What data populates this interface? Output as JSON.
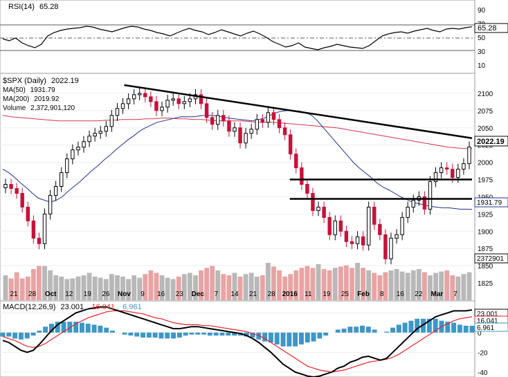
{
  "chart_data": [
    {
      "type": "line",
      "panel": "rsi",
      "title": "RSI(14)",
      "value_label": "65.28",
      "yticks": [
        10,
        30,
        50,
        70,
        90
      ],
      "ylim": [
        0,
        100
      ],
      "overbought": 70,
      "oversold": 30,
      "series": [
        {
          "name": "RSI(14)",
          "color": "#000000",
          "values": [
            48,
            45,
            49,
            42,
            38,
            35,
            40,
            52,
            57,
            60,
            62,
            63,
            64,
            66,
            65,
            62,
            60,
            58,
            61,
            64,
            66,
            65,
            62,
            60,
            57,
            55,
            52,
            56,
            60,
            63,
            60,
            58,
            54,
            57,
            61,
            58,
            55,
            52,
            56,
            59,
            55,
            50,
            44,
            40,
            36,
            38,
            42,
            36,
            34,
            32,
            35,
            37,
            40,
            38,
            36,
            35,
            34,
            38,
            45,
            52,
            55,
            57,
            58,
            56,
            59,
            61,
            63,
            60,
            58,
            62,
            63,
            62,
            64,
            65.28
          ]
        }
      ]
    },
    {
      "type": "candlestick",
      "panel": "price",
      "title": "$SPX (Daily)",
      "title_value": "2022.19",
      "legend": [
        {
          "name": "MA(50)",
          "value": "1931.79",
          "color": "#1f2f8f"
        },
        {
          "name": "MA(200)",
          "value": "2019.92",
          "color": "#d3324a"
        },
        {
          "name": "Volume",
          "value": "2,372,901,120",
          "color": "#888888"
        }
      ],
      "ylim": [
        1800,
        2125
      ],
      "yticks": [
        1825,
        1850,
        1875,
        1900,
        1925,
        1950,
        1975,
        2000,
        2025,
        2050,
        2075,
        2100
      ],
      "last_price_label": "2022.19",
      "ma50_label": "1931.79",
      "volume_label": "2372901",
      "x_labels": [
        "21",
        "28",
        "Oct",
        "12",
        "19",
        "26",
        "Nov",
        "9",
        "16",
        "23",
        "Dec",
        "7",
        "14",
        "21",
        "28",
        "2016",
        "11",
        "19",
        "25",
        "Feb",
        "8",
        "16",
        "22",
        "Mar",
        "7"
      ],
      "closes": [
        1968,
        1962,
        1955,
        1935,
        1915,
        1890,
        1882,
        1925,
        1952,
        1965,
        1985,
        2005,
        2018,
        2022,
        2030,
        2038,
        2042,
        2045,
        2052,
        2068,
        2078,
        2085,
        2092,
        2098,
        2100,
        2095,
        2088,
        2075,
        2080,
        2090,
        2092,
        2085,
        2088,
        2092,
        2098,
        2085,
        2065,
        2055,
        2068,
        2060,
        2045,
        2050,
        2028,
        2042,
        2048,
        2062,
        2058,
        2072,
        2062,
        2050,
        2040,
        2012,
        1992,
        1968,
        1955,
        1930,
        1935,
        1920,
        1895,
        1915,
        1900,
        1885,
        1882,
        1892,
        1880,
        1935,
        1910,
        1895,
        1860,
        1890,
        1895,
        1920,
        1935,
        1945,
        1950,
        1932,
        1972,
        1985,
        1992,
        1990,
        1978,
        1990,
        1998,
        2022.19
      ],
      "ma50": [
        1990,
        1985,
        1978,
        1970,
        1963,
        1955,
        1948,
        1945,
        1942,
        1945,
        1950,
        1958,
        1965,
        1972,
        1980,
        1988,
        1995,
        2003,
        2010,
        2018,
        2025,
        2032,
        2038,
        2045,
        2050,
        2054,
        2058,
        2060,
        2062,
        2064,
        2066,
        2066,
        2066,
        2067,
        2068,
        2068,
        2067,
        2066,
        2064,
        2063,
        2062,
        2061,
        2060,
        2062,
        2064,
        2068,
        2072,
        2074,
        2075,
        2075,
        2074,
        2072,
        2068,
        2060,
        2050,
        2040,
        2030,
        2020,
        2010,
        2000,
        1992,
        1985,
        1978,
        1970,
        1964,
        1960,
        1955,
        1950,
        1946,
        1942,
        1940,
        1938,
        1936,
        1935,
        1934,
        1934,
        1933,
        1932,
        1932,
        1931.79
      ],
      "ma200": [
        2068,
        2066,
        2065,
        2064,
        2063,
        2062,
        2061,
        2060,
        2060,
        2060,
        2060,
        2060,
        2060,
        2061,
        2061,
        2062,
        2062,
        2062,
        2063,
        2063,
        2064,
        2064,
        2063,
        2063,
        2062,
        2062,
        2061,
        2060,
        2060,
        2060,
        2060,
        2059,
        2058,
        2058,
        2058,
        2057,
        2056,
        2055,
        2054,
        2053,
        2052,
        2051,
        2050,
        2048,
        2046,
        2044,
        2042,
        2040,
        2038,
        2036,
        2034,
        2032,
        2030,
        2028,
        2026,
        2024,
        2022,
        2021,
        2020,
        2019.92
      ],
      "volume_pct": [
        40,
        35,
        45,
        35,
        38,
        50,
        55,
        55,
        48,
        40,
        38,
        34,
        35,
        38,
        40,
        44,
        38,
        36,
        34,
        42,
        40,
        38,
        34,
        40,
        36,
        42,
        48,
        44,
        40,
        36,
        34,
        38,
        42,
        44,
        40,
        48,
        52,
        55,
        48,
        42,
        40,
        44,
        38,
        42,
        44,
        38,
        40,
        60,
        54,
        48,
        38,
        42,
        48,
        52,
        55,
        52,
        58,
        50,
        48,
        52,
        54,
        56,
        52,
        60,
        52,
        48,
        44,
        40,
        45,
        48,
        50,
        46,
        44,
        48,
        50,
        45,
        40,
        44,
        46,
        48,
        40,
        38,
        42,
        45
      ],
      "volume_up_color": "#b8b8b8",
      "volume_down_color": "#e9a3a3",
      "trendlines": [
        {
          "from": [
            "Nov",
            2112
          ],
          "to": [
            "end",
            2035
          ]
        },
        {
          "from": [
            "2016",
            1975
          ],
          "to": [
            "end",
            1975
          ]
        },
        {
          "from": [
            "2016",
            1947
          ],
          "to": [
            "end",
            1947
          ]
        }
      ]
    },
    {
      "type": "line",
      "panel": "macd",
      "title": "MACD(12,26,9)",
      "values_label": {
        "macd": "23.001",
        "signal": "16.041",
        "hist": "6.961"
      },
      "yticks": [
        -40,
        -20,
        0,
        20
      ],
      "ylim": [
        -45,
        30
      ],
      "series": [
        {
          "name": "MACD",
          "color": "#000000",
          "values": [
            -8,
            -10,
            -14,
            -18,
            -20,
            -18,
            -12,
            -5,
            2,
            8,
            12,
            16,
            20,
            22,
            24,
            25,
            26,
            26,
            24,
            22,
            20,
            18,
            16,
            14,
            12,
            10,
            8,
            6,
            4,
            4,
            5,
            6,
            6,
            5,
            4,
            3,
            2,
            1,
            0,
            -1,
            -3,
            -6,
            -10,
            -15,
            -20,
            -26,
            -32,
            -36,
            -40,
            -42,
            -44,
            -45,
            -44,
            -42,
            -40,
            -36,
            -34,
            -30,
            -28,
            -25,
            -24,
            -26,
            -28,
            -26,
            -20,
            -14,
            -8,
            -2,
            4,
            8,
            12,
            16,
            18,
            20,
            22,
            22,
            22,
            23.001
          ]
        },
        {
          "name": "Signal",
          "color": "#e3232c",
          "values": [
            -4,
            -6,
            -8,
            -11,
            -14,
            -15,
            -14,
            -11,
            -7,
            -3,
            1,
            5,
            9,
            12,
            15,
            17,
            19,
            21,
            22,
            22,
            22,
            21,
            20,
            19,
            17,
            15,
            14,
            12,
            10,
            9,
            8,
            8,
            8,
            7,
            7,
            6,
            5,
            4,
            3,
            2,
            1,
            -1,
            -3,
            -6,
            -10,
            -14,
            -18,
            -22,
            -26,
            -30,
            -34,
            -36,
            -38,
            -39,
            -40,
            -39,
            -38,
            -36,
            -34,
            -32,
            -30,
            -29,
            -28,
            -27,
            -25,
            -22,
            -18,
            -14,
            -10,
            -6,
            -2,
            2,
            6,
            9,
            12,
            14,
            15,
            16.041
          ]
        }
      ],
      "histogram_color": "#3e96c7"
    }
  ]
}
